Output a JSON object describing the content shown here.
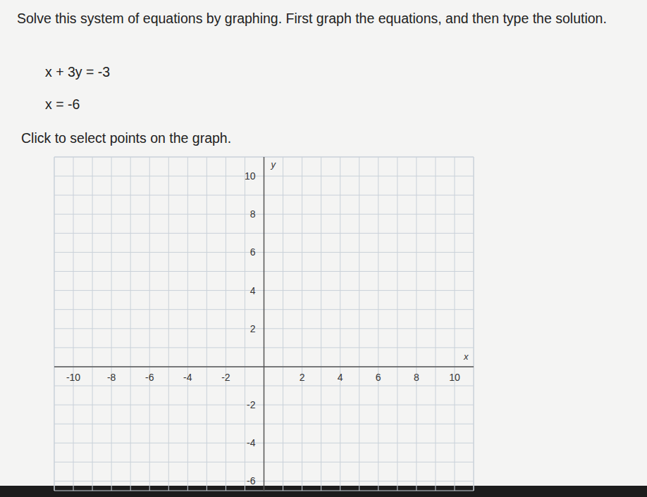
{
  "problem": {
    "instruction": "Solve this system of equations by graphing. First graph the equations, and then type the solution.",
    "equations": [
      "x + 3y = -3",
      "x = -6"
    ],
    "prompt": "Click to select points on the graph."
  },
  "chart_data": {
    "type": "scatter",
    "x_label": "x",
    "y_label": "y",
    "xlim": [
      -11,
      11
    ],
    "xticks": [
      -10,
      -8,
      -6,
      -4,
      -2,
      2,
      4,
      6,
      8,
      10
    ],
    "ylim": [
      -6.5,
      11
    ],
    "yticks": [
      -6,
      -4,
      -2,
      2,
      4,
      6,
      8,
      10
    ],
    "grid": true
  }
}
